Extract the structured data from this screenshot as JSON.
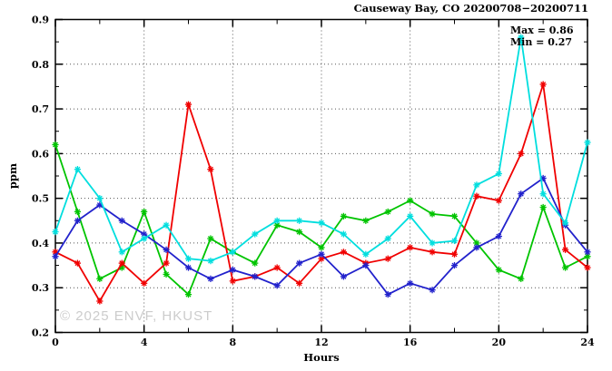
{
  "title": "Causeway Bay, CO 20200708−20200711",
  "legend": {
    "max": "Max = 0.86",
    "min": "Min = 0.27"
  },
  "watermark": "© 2025 ENVF, HKUST",
  "axes": {
    "ylabel": "ppm",
    "xlabel": "Hours"
  },
  "chart_data": {
    "type": "line",
    "title": "Causeway Bay, CO 20200708−20200711",
    "xlabel": "Hours",
    "ylabel": "ppm",
    "xlim": [
      0,
      24
    ],
    "ylim": [
      0.2,
      0.9
    ],
    "max_annotation": 0.86,
    "min_annotation": 0.27,
    "grid": true,
    "x_gridlines": [
      4,
      8,
      12,
      16,
      20
    ],
    "y_gridlines": [
      0.3,
      0.4,
      0.5,
      0.6,
      0.7,
      0.8
    ],
    "x_major_ticks": [
      0,
      4,
      8,
      12,
      16,
      20,
      24
    ],
    "x_tick_labels": [
      "0",
      "4",
      "8",
      "12",
      "16",
      "20",
      "24"
    ],
    "x_minor_step": 2,
    "y_major_ticks": [
      0.2,
      0.3,
      0.4,
      0.5,
      0.6,
      0.7,
      0.8,
      0.9
    ],
    "y_tick_labels": [
      "0.2",
      "0.3",
      "0.4",
      "0.5",
      "0.6",
      "0.7",
      "0.8",
      "0.9"
    ],
    "y_minor_step": 0.05,
    "marker": "asterisk",
    "x": [
      0,
      1,
      2,
      3,
      4,
      5,
      6,
      7,
      8,
      9,
      10,
      11,
      12,
      13,
      14,
      15,
      16,
      17,
      18,
      19,
      20,
      21,
      22,
      23,
      24
    ],
    "series": [
      {
        "name": "day-green",
        "color": "#00c400",
        "values": [
          0.62,
          0.47,
          0.32,
          0.345,
          0.47,
          0.33,
          0.285,
          0.41,
          0.38,
          0.355,
          0.44,
          0.425,
          0.39,
          0.46,
          0.45,
          0.47,
          0.495,
          0.465,
          0.46,
          0.4,
          0.34,
          0.32,
          0.48,
          0.345,
          0.37
        ]
      },
      {
        "name": "day-red",
        "color": "#f00000",
        "values": [
          0.38,
          0.355,
          0.27,
          0.355,
          0.31,
          0.355,
          0.71,
          0.565,
          0.315,
          0.325,
          0.345,
          0.31,
          0.365,
          0.38,
          0.355,
          0.365,
          0.39,
          0.38,
          0.375,
          0.505,
          0.495,
          0.6,
          0.755,
          0.385,
          0.345
        ]
      },
      {
        "name": "day-blue",
        "color": "#2222cc",
        "values": [
          0.37,
          0.45,
          0.485,
          0.45,
          0.42,
          0.385,
          0.345,
          0.32,
          0.34,
          0.325,
          0.305,
          0.355,
          0.375,
          0.325,
          0.35,
          0.285,
          0.31,
          0.295,
          0.35,
          0.39,
          0.415,
          0.51,
          0.545,
          0.44,
          0.38
        ]
      },
      {
        "name": "day-cyan",
        "color": "#00dede",
        "values": [
          0.425,
          0.565,
          0.5,
          0.38,
          0.41,
          0.44,
          0.365,
          0.36,
          0.38,
          0.42,
          0.45,
          0.45,
          0.445,
          0.42,
          0.375,
          0.41,
          0.46,
          0.4,
          0.405,
          0.53,
          0.555,
          0.86,
          0.51,
          0.445,
          0.625
        ]
      }
    ]
  },
  "style": {
    "grid_color": "#555555",
    "axis_color": "#000000",
    "text_color": "#000000",
    "background": "#ffffff"
  }
}
